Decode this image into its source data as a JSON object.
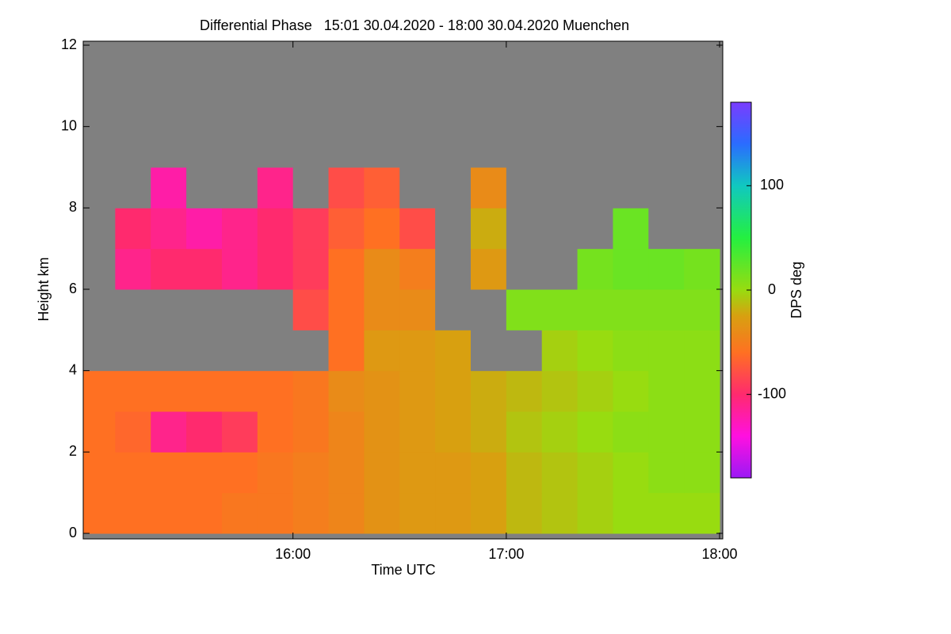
{
  "chart_data": {
    "type": "heatmap",
    "title": "Differential Phase   15:01 30.04.2020 - 18:00 30.04.2020 Muenchen",
    "x_label": "Time UTC",
    "y_label": "Height km",
    "colorbar_label": "DPS deg",
    "xlim": [
      "15:01",
      "18:00"
    ],
    "xticks": [
      "16:00",
      "17:00",
      "18:00"
    ],
    "ylim": [
      0,
      12
    ],
    "yticks": [
      0,
      2,
      4,
      6,
      8,
      10,
      12
    ],
    "zlim": [
      -180,
      180
    ],
    "zticks": [
      -100,
      0,
      100
    ],
    "missing_color": "#808080",
    "colorscale": [
      [
        -180,
        "#9b19f5"
      ],
      [
        -140,
        "#ff10e0"
      ],
      [
        -100,
        "#ff2a6e"
      ],
      [
        -60,
        "#ff7022"
      ],
      [
        -25,
        "#d8a010"
      ],
      [
        0,
        "#98dc10"
      ],
      [
        50,
        "#24f040"
      ],
      [
        100,
        "#10c8c0"
      ],
      [
        140,
        "#2a6cff"
      ],
      [
        180,
        "#7a3cff"
      ]
    ],
    "x_bins": [
      "15:01",
      "15:10",
      "15:20",
      "15:30",
      "15:40",
      "15:50",
      "16:00",
      "16:10",
      "16:20",
      "16:30",
      "16:40",
      "16:50",
      "17:00",
      "17:10",
      "17:20",
      "17:30",
      "17:40",
      "17:50",
      "18:00"
    ],
    "y_bins": [
      0,
      1,
      2,
      3,
      4,
      5,
      6,
      7,
      8,
      9,
      10,
      11,
      12
    ],
    "z": [
      [
        -60,
        -60,
        -60,
        -60,
        -55,
        -55,
        -50,
        -45,
        -35,
        -30,
        -30,
        -25,
        -15,
        -10,
        -5,
        0,
        0,
        0
      ],
      [
        -60,
        -60,
        -60,
        -60,
        -60,
        -55,
        -50,
        -45,
        -35,
        -30,
        -30,
        -25,
        -15,
        -10,
        -5,
        0,
        5,
        5
      ],
      [
        -60,
        -65,
        -110,
        -100,
        -90,
        -60,
        -55,
        -45,
        -35,
        -30,
        -25,
        -20,
        -10,
        -5,
        0,
        5,
        5,
        5
      ],
      [
        -60,
        -60,
        -60,
        -60,
        -60,
        -60,
        -55,
        -40,
        -35,
        -30,
        -25,
        -20,
        -15,
        -10,
        -5,
        0,
        5,
        5
      ],
      [
        null,
        null,
        null,
        null,
        null,
        null,
        null,
        -60,
        -30,
        -30,
        -25,
        null,
        null,
        -5,
        0,
        5,
        5,
        5
      ],
      [
        null,
        null,
        null,
        null,
        null,
        null,
        -80,
        -60,
        -40,
        -40,
        null,
        null,
        10,
        10,
        10,
        10,
        10,
        10
      ],
      [
        null,
        -110,
        -100,
        -100,
        -110,
        -100,
        -90,
        -60,
        -40,
        -50,
        null,
        -30,
        null,
        null,
        15,
        20,
        20,
        15
      ],
      [
        null,
        -100,
        -110,
        -120,
        -110,
        -100,
        -90,
        -70,
        -60,
        -80,
        null,
        -20,
        null,
        null,
        null,
        20,
        null,
        null
      ],
      [
        null,
        null,
        -120,
        null,
        null,
        -110,
        null,
        -80,
        -70,
        null,
        null,
        -40,
        null,
        null,
        null,
        null,
        null,
        null
      ],
      [
        null,
        null,
        null,
        null,
        null,
        null,
        null,
        null,
        null,
        null,
        null,
        null,
        null,
        null,
        null,
        null,
        null,
        null
      ],
      [
        null,
        null,
        null,
        null,
        null,
        null,
        null,
        null,
        null,
        null,
        null,
        null,
        null,
        null,
        null,
        null,
        null,
        null
      ],
      [
        null,
        null,
        null,
        null,
        null,
        null,
        null,
        null,
        null,
        null,
        null,
        null,
        null,
        null,
        null,
        null,
        null,
        null
      ]
    ]
  }
}
